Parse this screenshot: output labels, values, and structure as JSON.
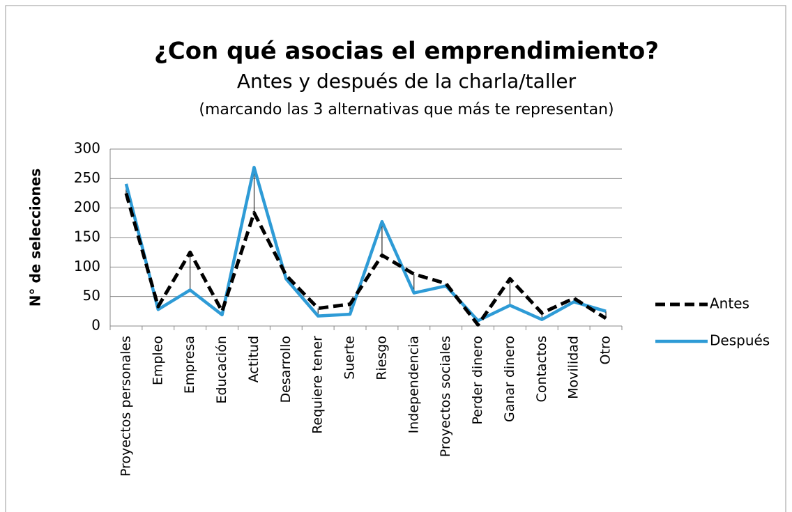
{
  "chart_data": {
    "type": "line",
    "title": "¿Con qué asocias el emprendimiento?",
    "subtitle": "Antes y después de la charla/taller",
    "note": "(marcando las 3 alternativas que más te representan)",
    "y_label": "N° de selecciones",
    "categories": [
      "Proyectos personales",
      "Empleo",
      "Empresa",
      "Educación",
      "Actitud",
      "Desarrollo",
      "Requiere tener",
      "Suerte",
      "Riesgo",
      "Independencia",
      "Proyectos sociales",
      "Perder dinero",
      "Ganar dinero",
      "Contactos",
      "Movilidad",
      "Otro"
    ],
    "series": [
      {
        "name": "Antes",
        "color": "#000000",
        "dashed": true,
        "values": [
          225,
          33,
          125,
          25,
          192,
          86,
          30,
          37,
          120,
          88,
          72,
          2,
          80,
          22,
          47,
          13
        ]
      },
      {
        "name": "Después",
        "color": "#2e9bd6",
        "dashed": false,
        "values": [
          241,
          28,
          61,
          19,
          269,
          80,
          17,
          20,
          177,
          56,
          68,
          9,
          35,
          11,
          41,
          25
        ]
      }
    ],
    "ylim": [
      0,
      300
    ],
    "yticks": [
      0,
      50,
      100,
      150,
      200,
      250,
      300
    ],
    "grid": true,
    "legend": "right"
  }
}
